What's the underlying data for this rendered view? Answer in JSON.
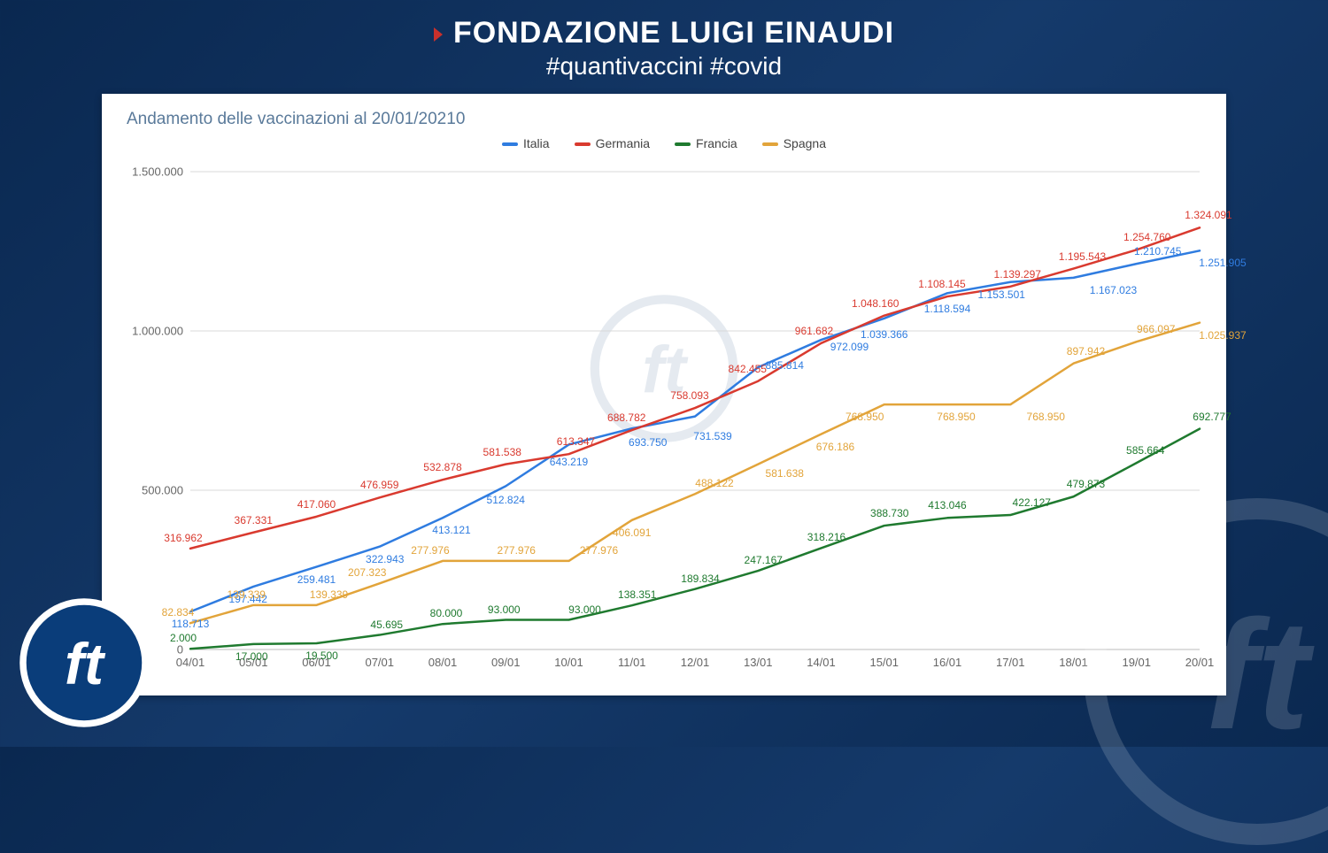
{
  "header": {
    "title": "FONDAZIONE LUIGI EINAUDI",
    "subtitle": "#quantivaccini #covid"
  },
  "chart": {
    "type": "line",
    "title": "Andamento delle vaccinazioni al 20/01/20210",
    "background_color": "#ffffff",
    "grid_color": "#d8d8d8",
    "axis_color": "#cccccc",
    "title_color": "#5a7a9a",
    "title_fontsize": 19,
    "label_fontsize": 12,
    "axis_label_color": "#666666",
    "line_width": 2.5,
    "ylim": [
      0,
      1500000
    ],
    "ytick_step": 500000,
    "yticks": [
      {
        "v": 0,
        "label": "0"
      },
      {
        "v": 500000,
        "label": "500.000"
      },
      {
        "v": 1000000,
        "label": "1.000.000"
      },
      {
        "v": 1500000,
        "label": "1.500.000"
      }
    ],
    "categories": [
      "04/01",
      "05/01",
      "06/01",
      "07/01",
      "08/01",
      "09/01",
      "10/01",
      "11/01",
      "12/01",
      "13/01",
      "14/01",
      "15/01",
      "16/01",
      "17/01",
      "18/01",
      "19/01",
      "20/01"
    ],
    "series": [
      {
        "name": "Italia",
        "color": "#2f7ce0",
        "values": [
          118713,
          197442,
          259481,
          322943,
          413121,
          512824,
          643219,
          693750,
          731539,
          885814,
          972099,
          1039366,
          1118594,
          1153501,
          1167023,
          1210745,
          1251905
        ],
        "labels": [
          "118.713",
          "197.442",
          "259.481",
          "322.943",
          "413.121",
          "512.824",
          "643.219",
          "693.750",
          "731.539",
          "885.814",
          "972.099",
          "1.039.366",
          "1.118.594",
          "1.153.501",
          "1.167.023",
          "1.210.745",
          "1.251.905"
        ],
        "label_offsets": [
          [
            0,
            14
          ],
          [
            -6,
            14
          ],
          [
            0,
            14
          ],
          [
            6,
            14
          ],
          [
            10,
            14
          ],
          [
            0,
            16
          ],
          [
            0,
            20
          ],
          [
            18,
            16
          ],
          [
            20,
            22
          ],
          [
            30,
            -2
          ],
          [
            32,
            8
          ],
          [
            0,
            18
          ],
          [
            0,
            18
          ],
          [
            -10,
            14
          ],
          [
            45,
            14
          ],
          [
            24,
            -14
          ],
          [
            26,
            14
          ]
        ]
      },
      {
        "name": "Germania",
        "color": "#d93a2f",
        "values": [
          316962,
          367331,
          417060,
          476959,
          532878,
          581538,
          613347,
          688782,
          758093,
          842455,
          961682,
          1048160,
          1108145,
          1139297,
          1195543,
          1254760,
          1324091
        ],
        "labels": [
          "316.962",
          "367.331",
          "417.060",
          "476.959",
          "532.878",
          "581.538",
          "613.347",
          "688.782",
          "758.093",
          "842.455",
          "961.682",
          "1.048.160",
          "1.108.145",
          "1.139.297",
          "1.195.543",
          "1.254.760",
          "1.324.091"
        ],
        "label_offsets": [
          [
            -8,
            -12
          ],
          [
            0,
            -14
          ],
          [
            0,
            -14
          ],
          [
            0,
            -14
          ],
          [
            0,
            -14
          ],
          [
            -4,
            -14
          ],
          [
            8,
            -14
          ],
          [
            -6,
            -14
          ],
          [
            -6,
            -14
          ],
          [
            -12,
            -14
          ],
          [
            -8,
            -14
          ],
          [
            -10,
            -14
          ],
          [
            -6,
            -14
          ],
          [
            8,
            -14
          ],
          [
            10,
            -14
          ],
          [
            12,
            -14
          ],
          [
            10,
            -14
          ]
        ]
      },
      {
        "name": "Francia",
        "color": "#1f7a2f",
        "values": [
          2000,
          17000,
          19500,
          45695,
          80000,
          93000,
          93000,
          138351,
          189834,
          247167,
          318216,
          388730,
          413046,
          422127,
          479873,
          585664,
          692777
        ],
        "labels": [
          "2.000",
          "17.000",
          "19.500",
          "45.695",
          "80.000",
          "93.000",
          "93.000",
          "138.351",
          "189.834",
          "247.167",
          "318.216",
          "388.730",
          "413.046",
          "422.127",
          "479.873",
          "585.664",
          "692.777"
        ],
        "label_offsets": [
          [
            -8,
            -12
          ],
          [
            -2,
            14
          ],
          [
            6,
            14
          ],
          [
            8,
            -12
          ],
          [
            4,
            -12
          ],
          [
            -2,
            -12
          ],
          [
            18,
            -12
          ],
          [
            6,
            -12
          ],
          [
            6,
            -12
          ],
          [
            6,
            -12
          ],
          [
            6,
            -12
          ],
          [
            6,
            -14
          ],
          [
            0,
            -14
          ],
          [
            24,
            -14
          ],
          [
            14,
            -14
          ],
          [
            10,
            -14
          ],
          [
            14,
            -14
          ]
        ]
      },
      {
        "name": "Spagna",
        "color": "#e2a43a",
        "values": [
          82834,
          139339,
          139339,
          207323,
          277976,
          277976,
          277976,
          406091,
          488122,
          581638,
          676186,
          768950,
          768950,
          768950,
          897942,
          966097,
          1025937
        ],
        "labels": [
          "82.834",
          "139.339",
          "139.339",
          "207.323",
          "277.976",
          "277.976",
          "277.976",
          "406.091",
          "488.122",
          "581.638",
          "676.186",
          "768.950",
          "768.950",
          "768.950",
          "897.942",
          "966.097",
          "1.025.937"
        ],
        "label_offsets": [
          [
            -14,
            -12
          ],
          [
            -8,
            -12
          ],
          [
            14,
            -12
          ],
          [
            -14,
            -12
          ],
          [
            -14,
            -12
          ],
          [
            12,
            -12
          ],
          [
            34,
            -12
          ],
          [
            0,
            14
          ],
          [
            22,
            -12
          ],
          [
            30,
            10
          ],
          [
            16,
            14
          ],
          [
            -22,
            14
          ],
          [
            10,
            14
          ],
          [
            40,
            14
          ],
          [
            14,
            -14
          ],
          [
            22,
            -14
          ],
          [
            26,
            14
          ]
        ]
      }
    ]
  },
  "colors": {
    "page_bg_from": "#0a2850",
    "page_bg_to": "#153a6b",
    "logo_ring": "#0a3d7a",
    "logo_stroke": "#ffffff"
  }
}
